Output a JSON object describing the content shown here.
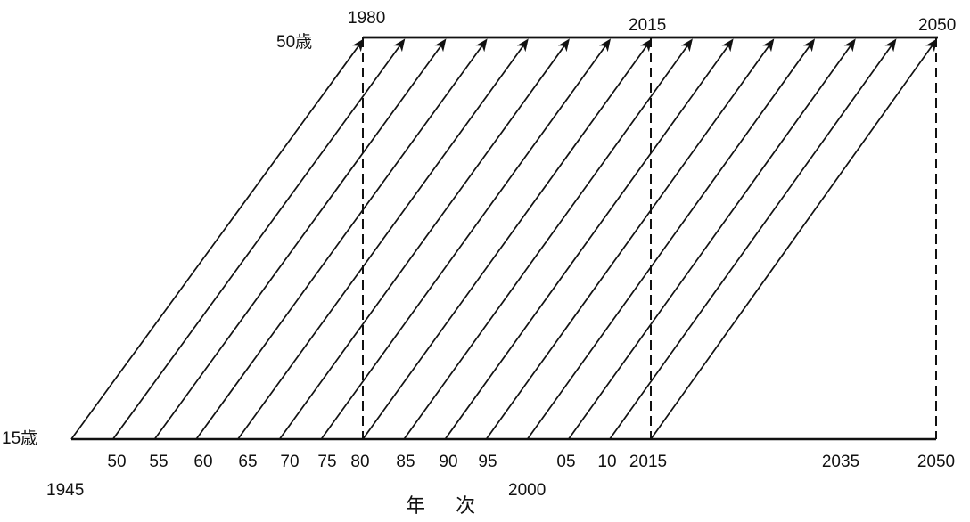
{
  "diagram": {
    "age_labels": {
      "top": "50歳",
      "bottom": "15歳"
    },
    "top_labels": [
      "1980",
      "2015",
      "2050"
    ],
    "bottom_tick_labels": [
      "50",
      "55",
      "60",
      "65",
      "70",
      "75",
      "80",
      "85",
      "90",
      "95",
      "05",
      "10",
      "2015",
      "2035",
      "2050"
    ],
    "lower_labels": [
      "1945",
      "2000"
    ],
    "xlabel": "年 次",
    "cohort_start_years": [
      1945,
      1950,
      1955,
      1960,
      1965,
      1970,
      1975,
      1980,
      1985,
      1990,
      1995,
      2000,
      2005,
      2010,
      2015
    ],
    "cohort_end_years": [
      1980,
      1985,
      1990,
      1995,
      2000,
      2005,
      2010,
      2015,
      2020,
      2025,
      2030,
      2035,
      2040,
      2045,
      2050
    ],
    "reference_years_dashed": [
      1980,
      2015,
      2050
    ],
    "age_range": [
      15,
      50
    ]
  }
}
